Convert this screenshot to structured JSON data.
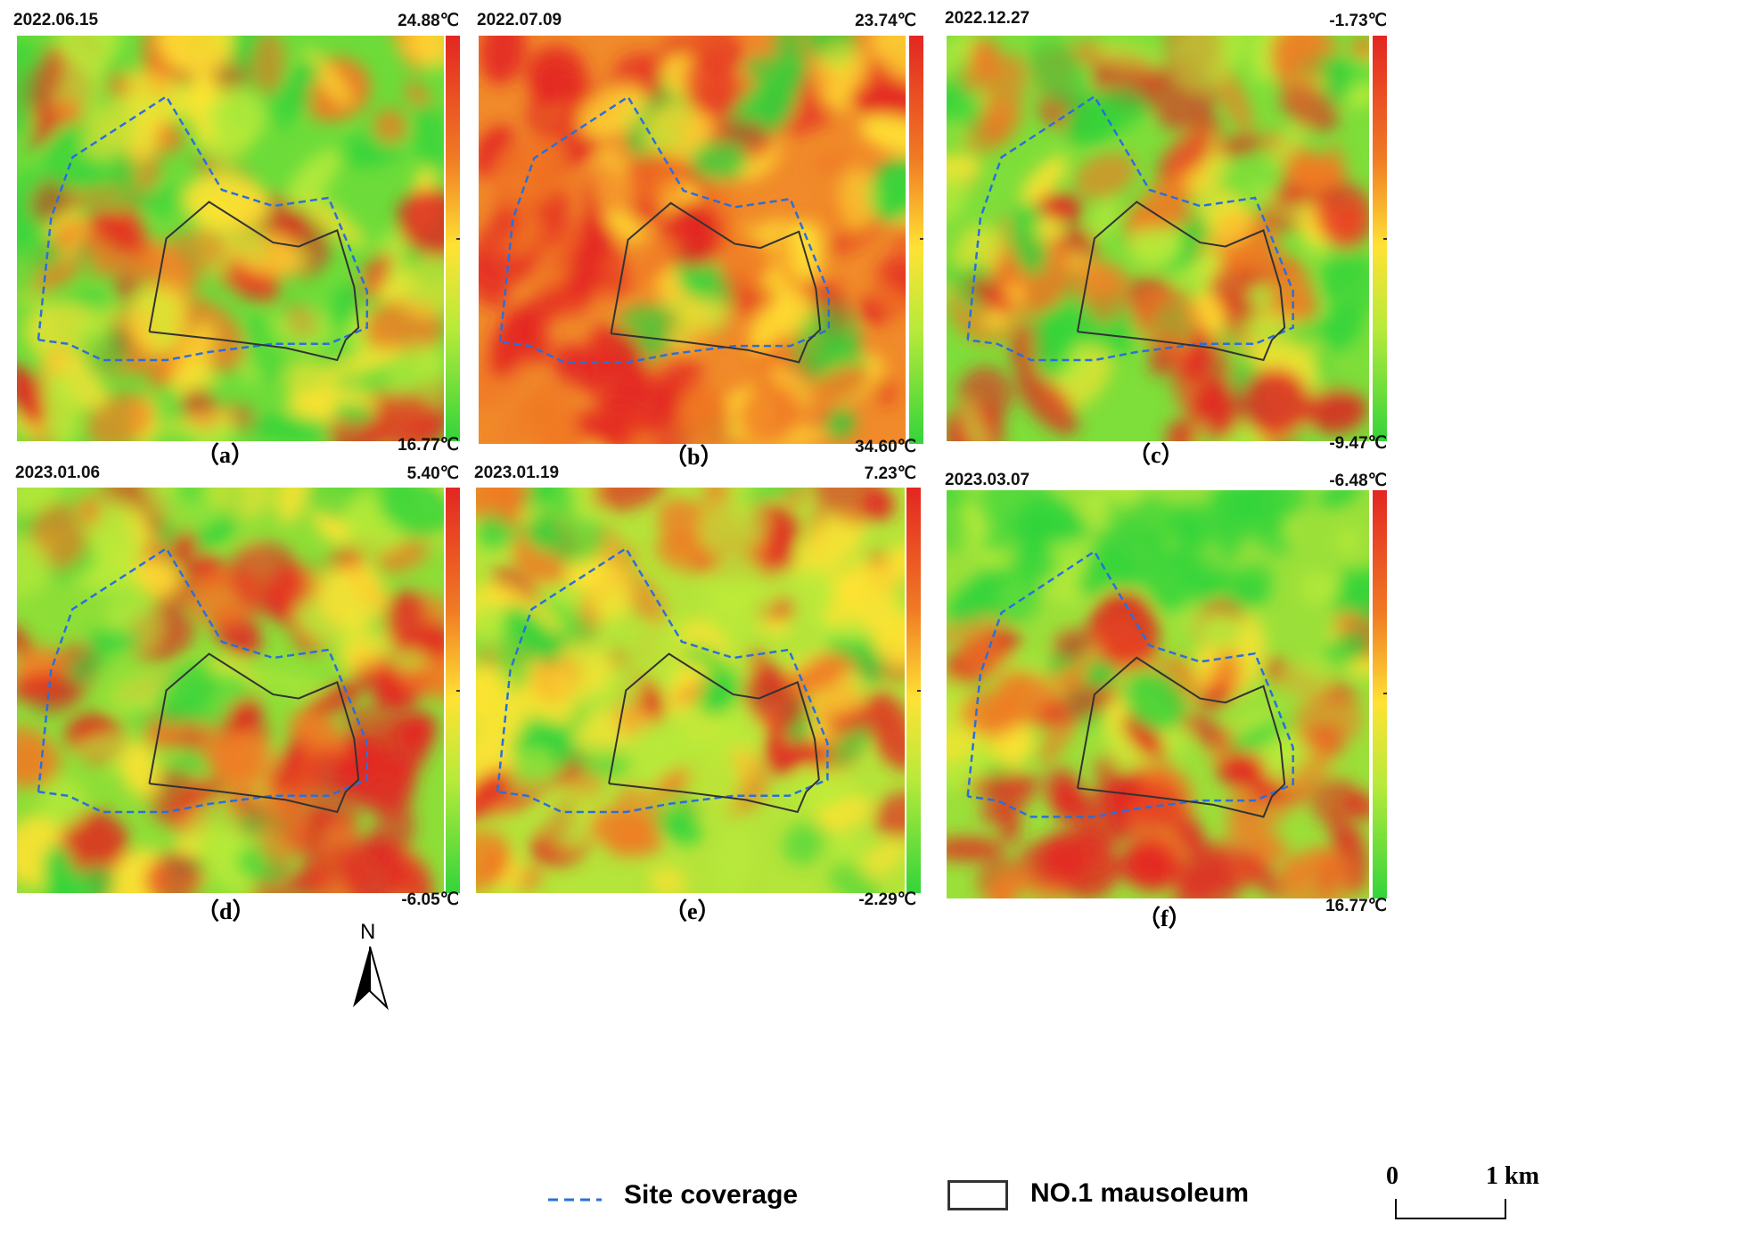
{
  "panels": [
    {
      "date": "2022.06.15",
      "top": "24.88℃",
      "bottom": "16.77℃",
      "label": "（a）",
      "theme": "warm-cross"
    },
    {
      "date": "2022.07.09",
      "top": "23.74℃",
      "bottom": "34.60℃",
      "label": "（b）",
      "theme": "hot-west"
    },
    {
      "date": "2022.12.27",
      "top": "-1.73℃",
      "bottom": "-9.47℃",
      "label": "（c）",
      "theme": "green-core"
    },
    {
      "date": "2023.01.06",
      "top": "5.40℃",
      "bottom": "-6.05℃",
      "label": "（d）",
      "theme": "hot-southeast"
    },
    {
      "date": "2023.01.19",
      "top": "7.23℃",
      "bottom": "-2.29℃",
      "label": "（e）",
      "theme": "mixed-stripes"
    },
    {
      "date": "2023.03.07",
      "top": "-6.48℃",
      "bottom": "16.77℃",
      "label": "（f）",
      "theme": "smooth-south"
    }
  ],
  "colors": {
    "hot": "#e32622",
    "warm": "#f07a24",
    "mid": "#ffe233",
    "cool": "#b8ea3a",
    "cold": "#33d43b",
    "site_line": "#2a6fdc",
    "mausoleum_line": "#333333"
  },
  "legend": {
    "north_label": "N",
    "site_coverage": "Site coverage",
    "mausoleum": "NO.1 mausoleum",
    "scale_zero": "0",
    "scale_one": "1 km"
  }
}
